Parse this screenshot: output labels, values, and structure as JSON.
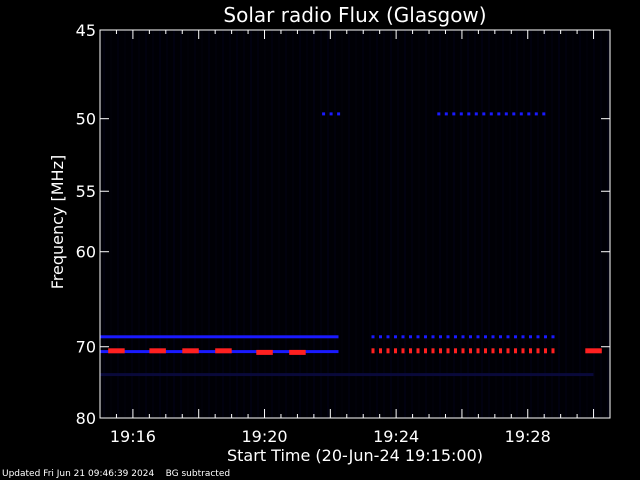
{
  "chart_data": {
    "type": "heatmap",
    "title": "Solar radio Flux (Glasgow)",
    "ylabel": "Frequency [MHz]",
    "xlabel": "Start Time (20-Jun-24 19:15:00)",
    "x_unit": "time (HH:MM on 20-Jun-24)",
    "xlim": [
      "19:15:00",
      "19:30:30"
    ],
    "ylim": [
      80,
      45
    ],
    "y_scale": "reciprocal",
    "x_ticks": [
      "19:16",
      "19:20",
      "19:24",
      "19:28"
    ],
    "y_ticks": [
      45,
      50,
      55,
      60,
      70,
      80
    ],
    "grid": false,
    "background_color": "#000000",
    "colors": {
      "weak": "#1a1aff",
      "strong": "#ff2020",
      "faint": "#0a0a40"
    },
    "features": [
      {
        "name": "continuous band",
        "freq_mhz": 70.6,
        "start": "19:15:00",
        "end": "19:22:15",
        "level": "weak"
      },
      {
        "name": "hot segment",
        "freq_mhz": 70.5,
        "start": "19:15:15",
        "end": "19:15:45",
        "level": "strong"
      },
      {
        "name": "hot segment",
        "freq_mhz": 70.5,
        "start": "19:16:30",
        "end": "19:17:00",
        "level": "strong"
      },
      {
        "name": "hot segment",
        "freq_mhz": 70.5,
        "start": "19:17:30",
        "end": "19:18:00",
        "level": "strong"
      },
      {
        "name": "hot segment",
        "freq_mhz": 70.5,
        "start": "19:18:30",
        "end": "19:19:00",
        "level": "strong"
      },
      {
        "name": "hot segment",
        "freq_mhz": 70.7,
        "start": "19:19:45",
        "end": "19:20:15",
        "level": "strong"
      },
      {
        "name": "hot segment",
        "freq_mhz": 70.7,
        "start": "19:20:45",
        "end": "19:21:15",
        "level": "strong"
      },
      {
        "name": "dotted band",
        "freq_mhz": 70.5,
        "start": "19:23:15",
        "end": "19:28:45",
        "level": "strong"
      },
      {
        "name": "dotted band",
        "freq_mhz": 68.8,
        "start": "19:23:15",
        "end": "19:28:45",
        "level": "weak"
      },
      {
        "name": "dotted band",
        "freq_mhz": 49.7,
        "start": "19:25:15",
        "end": "19:28:30",
        "level": "weak"
      },
      {
        "name": "dotted band",
        "freq_mhz": 49.7,
        "start": "19:21:45",
        "end": "19:22:15",
        "level": "weak"
      },
      {
        "name": "upper band",
        "freq_mhz": 68.8,
        "start": "19:15:00",
        "end": "19:22:15",
        "level": "weak"
      },
      {
        "name": "lower band",
        "freq_mhz": 73.6,
        "start": "19:15:00",
        "end": "19:30:00",
        "level": "faint"
      },
      {
        "name": "right segment",
        "freq_mhz": 70.5,
        "start": "19:29:45",
        "end": "19:30:15",
        "level": "strong"
      }
    ]
  },
  "footer": {
    "updated": "Updated Fri Jun 21 09:46:39 2024",
    "note": "BG subtracted"
  }
}
